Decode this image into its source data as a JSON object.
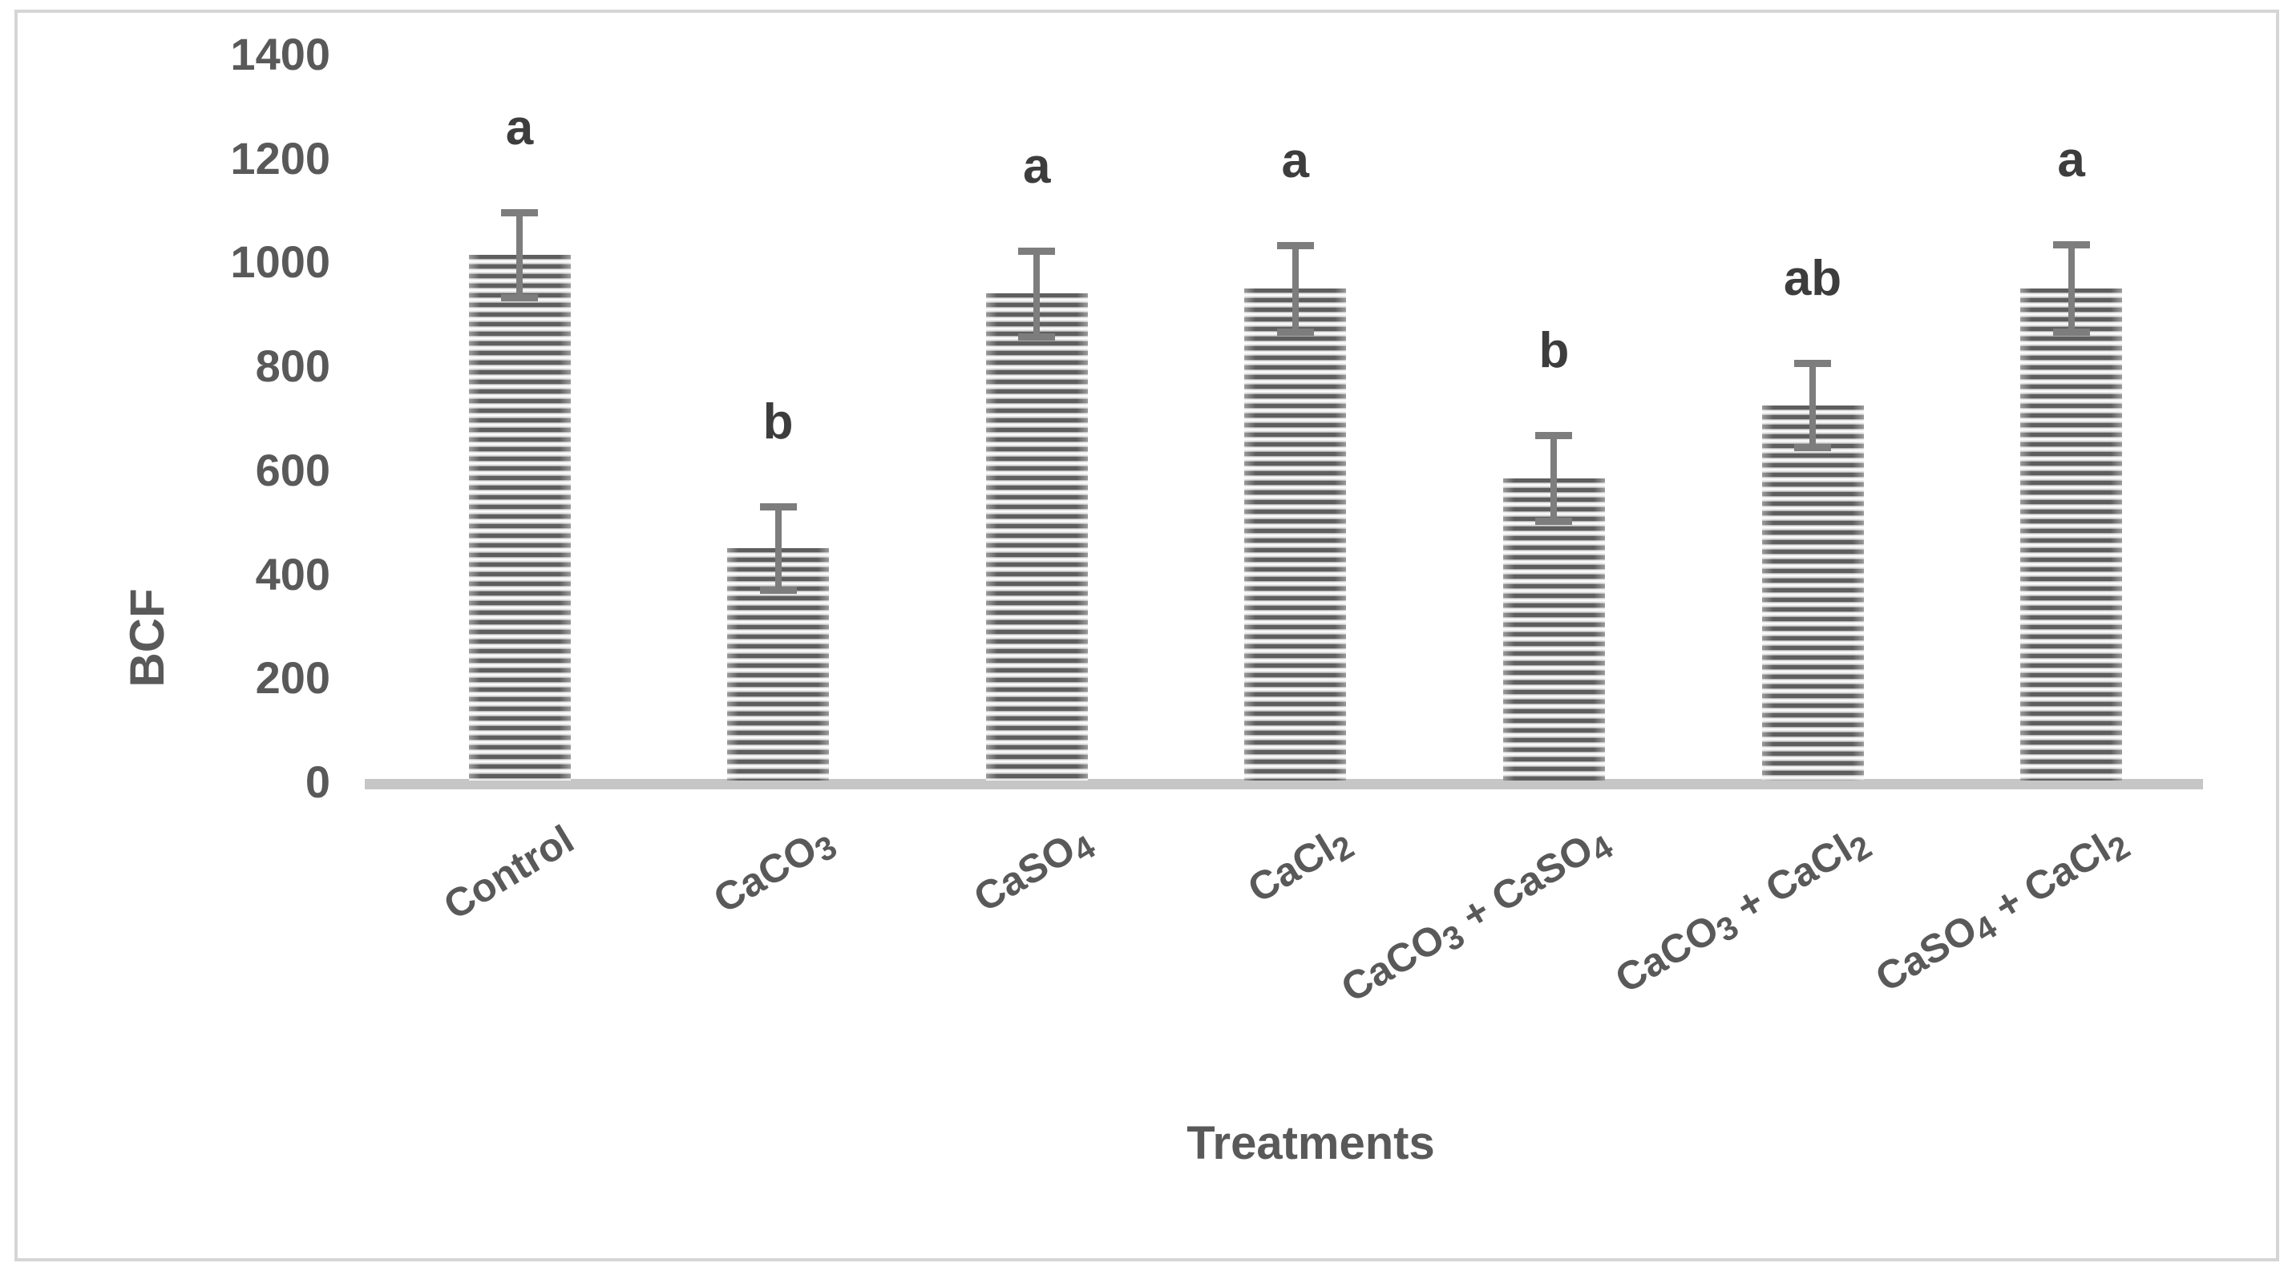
{
  "figure": {
    "kind": "bar-chart-figure"
  },
  "chart_data": {
    "type": "bar",
    "title": "",
    "xlabel": "Treatments",
    "ylabel": "BCF",
    "categories": [
      "Control",
      "CaCO3",
      "CaSO4",
      "CaCl2",
      "CaCO3 + CaSO4",
      "CaCO3 + CaCl2",
      "CaSO4 + CaCl2"
    ],
    "values": [
      1015,
      450,
      940,
      950,
      585,
      725,
      950
    ],
    "error_bars": [
      82,
      80,
      82,
      83,
      82,
      81,
      84
    ],
    "significance_letters": [
      "a",
      "b",
      "a",
      "a",
      "b",
      "ab",
      "a"
    ],
    "ylim": [
      0,
      1400
    ],
    "yticks": [
      0,
      200,
      400,
      600,
      800,
      1000,
      1200,
      1400
    ],
    "grid": false,
    "legend": "none",
    "bar_fill": "horizontal-stripe-pattern"
  },
  "colors": {
    "stripe_dark": "#5e5e5e",
    "stripe_light": "#f7f7f7",
    "error_bar": "#7d7d7d",
    "axis_text": "#595959",
    "letter_text": "#3d3d3d",
    "baseline": "#c6c6c6",
    "border": "#d5d5d5",
    "background": "#ffffff"
  }
}
